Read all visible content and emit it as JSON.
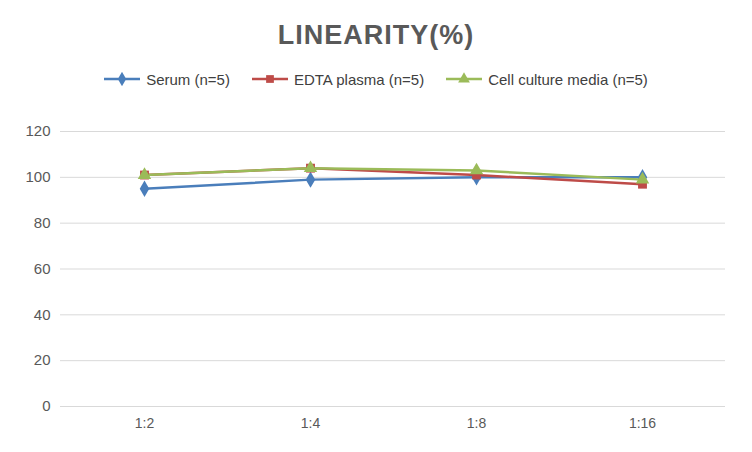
{
  "chart_data": {
    "type": "line",
    "title": "LINEARITY(%)",
    "categories": [
      "1:2",
      "1:4",
      "1:8",
      "1:16"
    ],
    "series": [
      {
        "name": "Serum (n=5)",
        "color": "#4a7ebb",
        "marker": "diamond",
        "values": [
          95,
          99,
          100,
          100
        ]
      },
      {
        "name": "EDTA plasma (n=5)",
        "color": "#be4b48",
        "marker": "square",
        "values": [
          101,
          104,
          101,
          97
        ]
      },
      {
        "name": "Cell culture media (n=5)",
        "color": "#9bbb59",
        "marker": "triangle",
        "values": [
          101,
          104,
          103,
          99
        ]
      }
    ],
    "ylim": [
      0,
      120
    ],
    "yticks": [
      0,
      20,
      40,
      60,
      80,
      100,
      120
    ],
    "grid": true,
    "legend": "top"
  }
}
